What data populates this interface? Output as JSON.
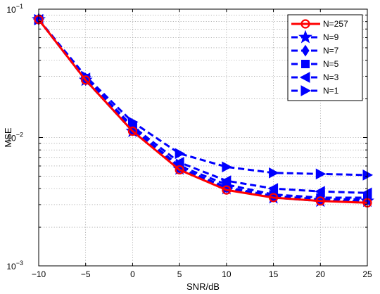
{
  "chart_data": {
    "type": "line",
    "title": "",
    "xlabel": "SNR/dB",
    "ylabel": "MSE",
    "xlim": [
      -10,
      25
    ],
    "ylim": [
      0.001,
      0.1
    ],
    "yscale": "log",
    "grid": true,
    "legend_position": "top-right",
    "x": [
      -10,
      -5,
      0,
      5,
      10,
      15,
      20,
      25
    ],
    "x_ticks": [
      "−10",
      "−5",
      "0",
      "5",
      "10",
      "15",
      "20",
      "25"
    ],
    "y_ticks": [
      {
        "value": 0.1,
        "base": "10",
        "exp": "−1"
      },
      {
        "value": 0.01,
        "base": "10",
        "exp": "−2"
      },
      {
        "value": 0.001,
        "base": "10",
        "exp": "−3"
      }
    ],
    "series": [
      {
        "name": "N=257",
        "color": "#ff0000",
        "marker": "circle",
        "dash": false,
        "values": [
          0.083,
          0.028,
          0.0112,
          0.0056,
          0.0039,
          0.0034,
          0.0032,
          0.0031
        ]
      },
      {
        "name": "N=9",
        "color": "#0000ff",
        "marker": "star",
        "dash": true,
        "values": [
          0.083,
          0.028,
          0.0112,
          0.0057,
          0.004,
          0.0034,
          0.0032,
          0.0032
        ]
      },
      {
        "name": "N=7",
        "color": "#0000ff",
        "marker": "diamond",
        "dash": true,
        "values": [
          0.083,
          0.028,
          0.0115,
          0.0058,
          0.0041,
          0.0035,
          0.0033,
          0.0033
        ]
      },
      {
        "name": "N=5",
        "color": "#0000ff",
        "marker": "square",
        "dash": true,
        "values": [
          0.083,
          0.029,
          0.0118,
          0.006,
          0.0043,
          0.0036,
          0.0034,
          0.0034
        ]
      },
      {
        "name": "N=3",
        "color": "#0000ff",
        "marker": "triangle-left",
        "dash": true,
        "values": [
          0.083,
          0.029,
          0.0122,
          0.0064,
          0.0046,
          0.004,
          0.0038,
          0.0037
        ]
      },
      {
        "name": "N=1",
        "color": "#0000ff",
        "marker": "triangle-right",
        "dash": true,
        "values": [
          0.083,
          0.03,
          0.0132,
          0.0075,
          0.0059,
          0.0053,
          0.0052,
          0.0051
        ]
      }
    ]
  }
}
